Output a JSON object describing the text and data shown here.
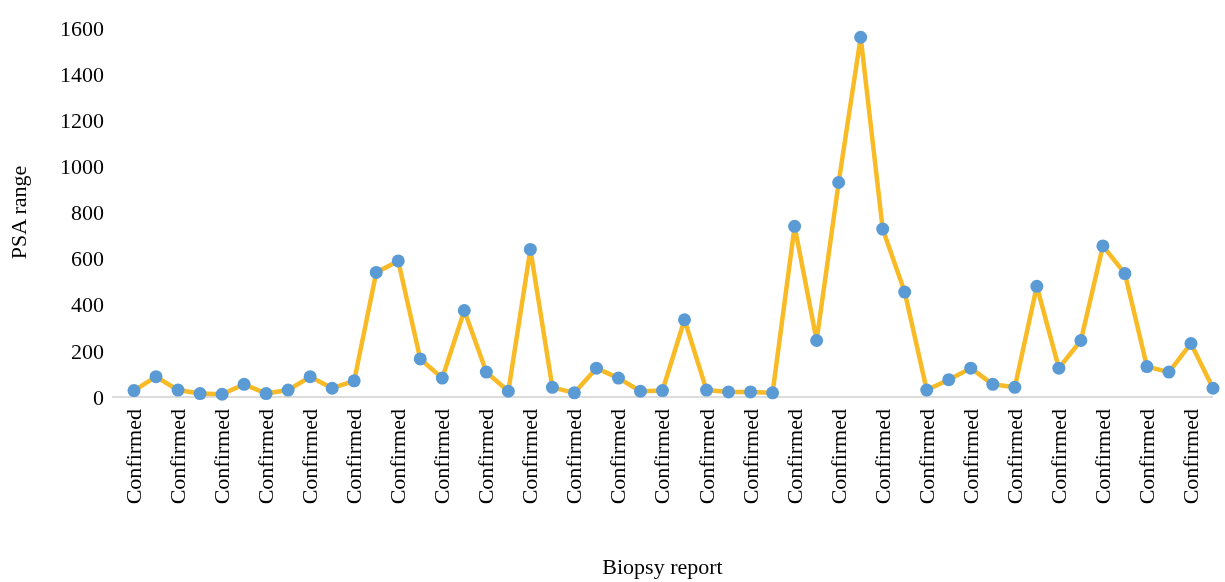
{
  "chart_data": {
    "type": "line",
    "xlabel": "Biopsy report",
    "ylabel": "PSA range",
    "categories": [
      "Confirmed",
      null,
      "Confirmed",
      null,
      "Confirmed",
      null,
      "Confirmed",
      null,
      "Confirmed",
      null,
      "Confirmed",
      null,
      "Confirmed",
      null,
      "Confirmed",
      null,
      "Confirmed",
      null,
      "Confirmed",
      null,
      "Confirmed",
      null,
      "Confirmed",
      null,
      "Confirmed",
      null,
      "Confirmed",
      null,
      "Confirmed",
      null,
      "Confirmed",
      null,
      "Confirmed",
      null,
      "Confirmed",
      null,
      "Confirmed",
      null,
      "Confirmed",
      null,
      "Confirmed",
      null,
      "Confirmed",
      null,
      "Confirmed",
      null,
      "Confirmed",
      null,
      "Confirmed",
      null
    ],
    "series": [
      {
        "color": "#f8bb26",
        "colors": [
          "#5b9bd5",
          "#5b9bd5",
          "#5b9bd5",
          "#5b9bd5",
          "#5b9bd5",
          "#5b9bd5",
          "#5b9bd5",
          "#5b9bd5",
          "#5b9bd5",
          "#5b9bd5",
          "#5b9bd5",
          "#5b9bd5",
          "#5b9bd5",
          "#5b9bd5",
          "#5b9bd5",
          "#5b9bd5",
          "#5b9bd5",
          "#5b9bd5",
          "#5b9bd5",
          "#5b9bd5",
          "#5b9bd5",
          "#5b9bd5",
          "#5b9bd5",
          "#5b9bd5",
          "#5b9bd5",
          "#5b9bd5",
          "#5b9bd5",
          "#5b9bd5",
          "#5b9bd5",
          "#5b9bd5",
          "#5b9bd5",
          "#5b9bd5",
          "#5b9bd5",
          "#5b9bd5",
          "#5b9bd5",
          "#5b9bd5",
          "#5b9bd5",
          "#5b9bd5",
          "#5b9bd5",
          "#5b9bd5",
          "#5b9bd5",
          "#5b9bd5",
          "#5b9bd5",
          "#5b9bd5",
          "#5b9bd5",
          "#5b9bd5",
          "#5b9bd5",
          "#5b9bd5",
          "#5b9bd5",
          "#5b9bd5"
        ],
        "values": [
          28,
          88,
          30,
          15,
          12,
          55,
          15,
          30,
          88,
          38,
          70,
          540,
          590,
          165,
          82,
          375,
          108,
          25,
          640,
          42,
          18,
          125,
          82,
          25,
          28,
          335,
          30,
          22,
          22,
          18,
          740,
          245,
          930,
          1560,
          728,
          455,
          30,
          75,
          125,
          55,
          42,
          480,
          125,
          245,
          655,
          535,
          132,
          108,
          232,
          38
        ]
      }
    ],
    "ylim": [
      0,
      1600
    ],
    "yticks": [
      0,
      200,
      400,
      600,
      800,
      1000,
      1200,
      1400,
      1600
    ],
    "grid": false,
    "marker": "circle",
    "line_style": "solid"
  }
}
